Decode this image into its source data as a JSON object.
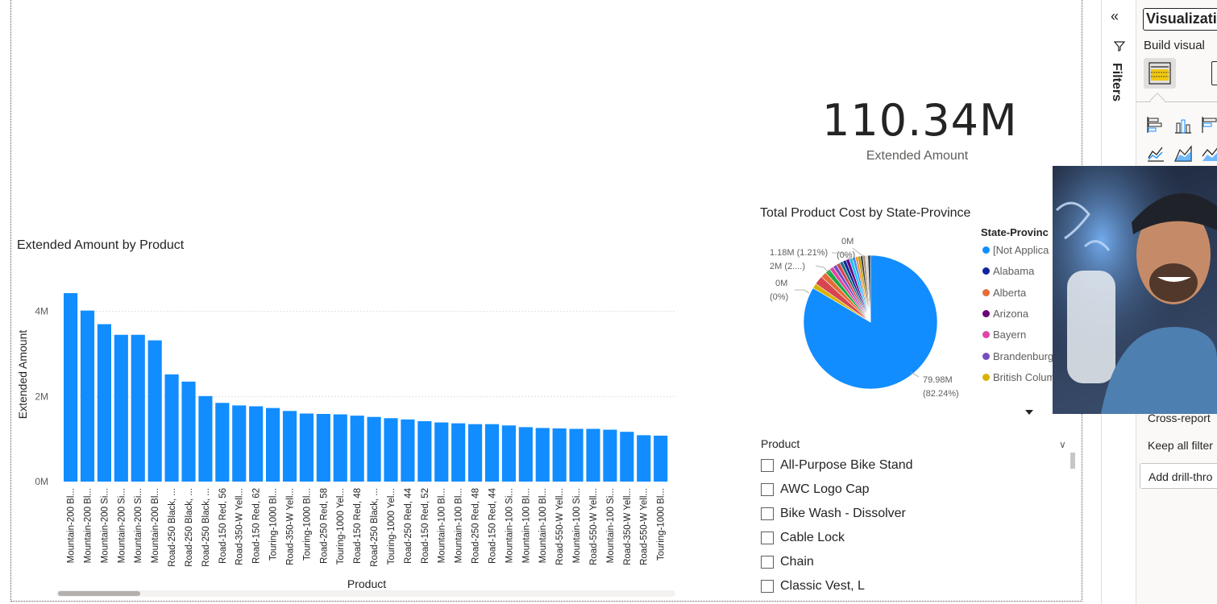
{
  "card": {
    "value": "110.34M",
    "label": "Extended Amount"
  },
  "bar_visual_title": "Extended Amount by Product",
  "pie_visual_title": "Total Product Cost by State-Province",
  "chart_data": [
    {
      "type": "bar",
      "title": "Extended Amount by Product",
      "xlabel": "Product",
      "ylabel": "Extended Amount",
      "ylim": [
        0,
        4.6
      ],
      "yticks": [
        "0M",
        "2M",
        "4M"
      ],
      "categories": [
        "Mountain-200 Bl...",
        "Mountain-200 Bl...",
        "Mountain-200 Si...",
        "Mountain-200 Si...",
        "Mountain-200 Si...",
        "Mountain-200 Bl...",
        "Road-250 Black, ...",
        "Road-250 Black, ...",
        "Road-250 Black, ...",
        "Road-150 Red, 56",
        "Road-350-W Yell...",
        "Road-150 Red, 62",
        "Touring-1000 Bl...",
        "Road-350-W Yell...",
        "Touring-1000 Bl...",
        "Road-250 Red, 58",
        "Touring-1000 Yel...",
        "Road-150 Red, 48",
        "Road-250 Black, ...",
        "Touring-1000 Yel...",
        "Road-250 Red, 44",
        "Road-150 Red, 52",
        "Mountain-100 Bl...",
        "Mountain-100 Bl...",
        "Road-250 Red, 48",
        "Road-150 Red, 44",
        "Mountain-100 Si...",
        "Mountain-100 Bl...",
        "Mountain-100 Bl...",
        "Road-550-W Yell...",
        "Mountain-100 Si...",
        "Road-550-W Yell...",
        "Mountain-100 Si...",
        "Road-350-W Yell...",
        "Road-550-W Yell...",
        "Touring-1000 Bl..."
      ],
      "values": [
        4.43,
        4.02,
        3.7,
        3.45,
        3.45,
        3.32,
        2.52,
        2.35,
        2.01,
        1.85,
        1.79,
        1.77,
        1.73,
        1.66,
        1.6,
        1.59,
        1.58,
        1.55,
        1.52,
        1.49,
        1.46,
        1.42,
        1.39,
        1.37,
        1.35,
        1.35,
        1.32,
        1.28,
        1.26,
        1.25,
        1.24,
        1.24,
        1.22,
        1.17,
        1.09,
        1.08
      ],
      "bar_color": "#118DFF"
    },
    {
      "type": "pie",
      "title": "Total Product Cost by State-Province",
      "legend_title": "State-Provinc",
      "legend": [
        {
          "name": "[Not Applica",
          "color": "#118DFF"
        },
        {
          "name": "Alabama",
          "color": "#12239E"
        },
        {
          "name": "Alberta",
          "color": "#E66C37"
        },
        {
          "name": "Arizona",
          "color": "#6B007B"
        },
        {
          "name": "Bayern",
          "color": "#E044A7"
        },
        {
          "name": "Brandenburg",
          "color": "#744EC2"
        },
        {
          "name": "British Colum",
          "color": "#D9B300"
        }
      ],
      "slices": [
        {
          "value": 82.24,
          "color": "#118DFF"
        },
        {
          "value": 1.21,
          "color": "#D9B300"
        },
        {
          "value": 2.1,
          "color": "#D64550"
        },
        {
          "value": 1.4,
          "color": "#E66C37"
        },
        {
          "value": 1.2,
          "color": "#1AAB40"
        },
        {
          "value": 1.0,
          "color": "#E044A7"
        },
        {
          "value": 0.9,
          "color": "#744EC2"
        },
        {
          "value": 0.9,
          "color": "#D64550"
        },
        {
          "value": 0.8,
          "color": "#197278"
        },
        {
          "value": 0.8,
          "color": "#12239E"
        },
        {
          "value": 0.8,
          "color": "#6B007B"
        },
        {
          "value": 0.8,
          "color": "#15C6F4"
        },
        {
          "value": 0.7,
          "color": "#4092FF"
        },
        {
          "value": 0.6,
          "color": "#FF8C2E"
        },
        {
          "value": 0.6,
          "color": "#B39C00"
        },
        {
          "value": 0.6,
          "color": "#3E3E3E"
        },
        {
          "value": 0.6,
          "color": "#A68C72"
        },
        {
          "value": 0.6,
          "color": "#D4D4D4"
        },
        {
          "value": 0.6,
          "color": "#2E2E2E"
        }
      ],
      "data_labels": {
        "top": "0M",
        "top_pct": "(0%)",
        "mid1": "1.18M (1.21%)",
        "mid2": "2M (2....)",
        "left": "0M",
        "left_pct": "(0%)",
        "main": "79.98M",
        "main_pct": "(82.24%)"
      }
    }
  ],
  "slicer": {
    "header": "Product",
    "items": [
      "All-Purpose Bike Stand",
      "AWC Logo Cap",
      "Bike Wash - Dissolver",
      "Cable Lock",
      "Chain",
      "Classic Vest, L"
    ]
  },
  "filters_pane": {
    "label": "Filters"
  },
  "viz_pane": {
    "title": "Visualizati",
    "build_visual": "Build visual",
    "cross_report": "Cross-report",
    "keep_all_filters": "Keep all filter",
    "add_drill_through": "Add drill-thro"
  },
  "colors": {
    "accent": "#118DFF",
    "pane_bg": "#faf9f8",
    "text": "#252423",
    "muted": "#605e5c"
  }
}
